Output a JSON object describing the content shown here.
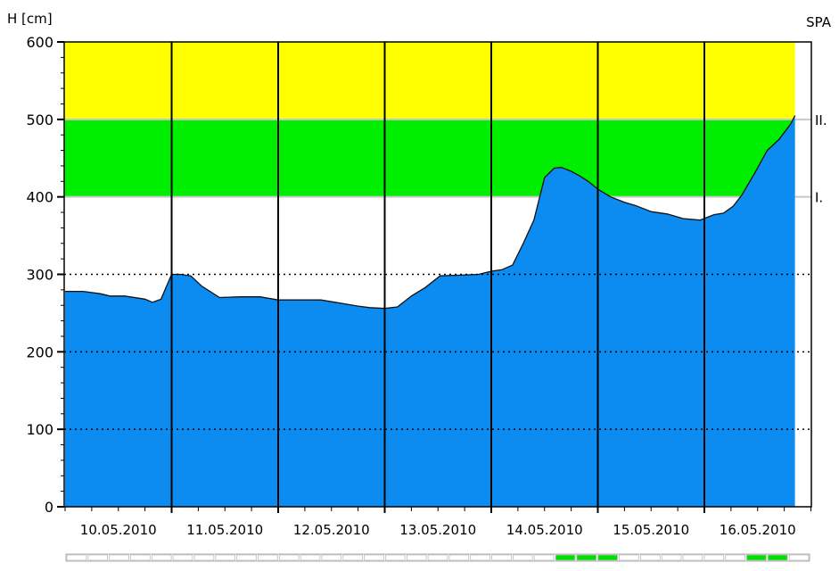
{
  "chart_data": {
    "type": "area",
    "title": "SPA",
    "ylabel": "H [cm]",
    "ylim": [
      0,
      600
    ],
    "yticks": [
      0,
      100,
      200,
      300,
      400,
      500,
      600
    ],
    "dotted_grid_at": [
      100,
      200,
      300
    ],
    "x_dates": [
      "10.05.2010",
      "11.05.2010",
      "12.05.2010",
      "13.05.2010",
      "14.05.2010",
      "15.05.2010",
      "16.05.2010"
    ],
    "x_range_days": [
      0,
      7
    ],
    "bands": [
      {
        "name": "II.",
        "from": 500,
        "to": 600,
        "color": "#ffff00"
      },
      {
        "name": "I.",
        "from": 400,
        "to": 500,
        "color": "#00ee00"
      }
    ],
    "threshold_labels": [
      {
        "label": "II.",
        "value": 500
      },
      {
        "label": "I.",
        "value": 400
      }
    ],
    "fill_color": "#0c8cf0",
    "series": [
      {
        "x": [
          0.0,
          0.17,
          0.33,
          0.42,
          0.56,
          0.75,
          0.82,
          0.9,
          1.0,
          1.08,
          1.18,
          1.28,
          1.45,
          1.64,
          1.83,
          2.0,
          2.21,
          2.4,
          2.62,
          2.75,
          2.86,
          3.0,
          3.12,
          3.25,
          3.38,
          3.52,
          3.71,
          3.88,
          4.0,
          4.1,
          4.2,
          4.3,
          4.4,
          4.5,
          4.59,
          4.66,
          4.75,
          4.83,
          4.91,
          5.0,
          5.12,
          5.25,
          5.35,
          5.5,
          5.65,
          5.8,
          5.96,
          6.09,
          6.18,
          6.27,
          6.35,
          6.47,
          6.59,
          6.7,
          6.81,
          6.85
        ],
        "y": [
          278,
          278,
          275,
          272,
          272,
          268,
          264,
          268,
          300,
          300,
          298,
          285,
          270,
          271,
          271,
          267,
          267,
          267,
          262,
          259,
          257,
          256,
          258,
          272,
          283,
          298,
          299,
          300,
          304,
          306,
          312,
          340,
          370,
          425,
          437,
          438,
          433,
          427,
          420,
          410,
          400,
          393,
          389,
          381,
          378,
          372,
          370,
          377,
          379,
          388,
          402,
          430,
          460,
          474,
          494,
          505
        ]
      }
    ]
  },
  "status_strip": {
    "segment_count": 35,
    "green_segments": [
      23,
      24,
      25,
      32,
      33
    ]
  }
}
